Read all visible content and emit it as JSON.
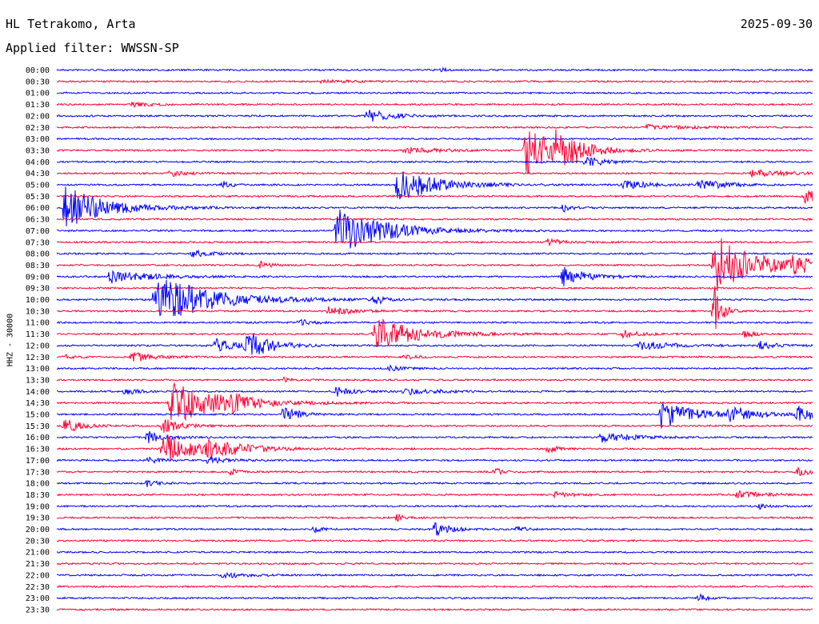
{
  "header": {
    "station": "HL Tetrakomo, Arta",
    "date": "2025-09-30",
    "filter": "Applied filter: WWSSN-SP"
  },
  "colors": {
    "trace_even": "#0000ff",
    "trace_odd": "#ff0033",
    "text": "#000000"
  },
  "chart_data": {
    "type": "line",
    "ylabel": "HHZ - 30000",
    "time_labels": [
      "00:00",
      "00:30",
      "01:00",
      "01:30",
      "02:00",
      "02:30",
      "03:00",
      "03:30",
      "04:00",
      "04:30",
      "05:00",
      "05:30",
      "06:00",
      "06:30",
      "07:00",
      "07:30",
      "08:00",
      "08:30",
      "09:00",
      "09:30",
      "10:00",
      "10:30",
      "11:00",
      "11:30",
      "12:00",
      "12:30",
      "13:00",
      "13:30",
      "14:00",
      "14:30",
      "15:00",
      "15:30",
      "16:00",
      "16:30",
      "17:00",
      "17:30",
      "18:00",
      "18:30",
      "19:00",
      "19:30",
      "20:00",
      "20:30",
      "21:00",
      "21:30",
      "22:00",
      "22:30",
      "23:00",
      "23:30"
    ],
    "x_minutes": [
      0,
      30
    ],
    "events": [
      {
        "row": 0,
        "t": 0.51,
        "a": 3,
        "d": 0.005
      },
      {
        "row": 1,
        "t": 0.35,
        "a": 2,
        "d": 0.03
      },
      {
        "row": 3,
        "t": 0.1,
        "a": 3,
        "d": 0.025
      },
      {
        "row": 4,
        "t": 0.41,
        "a": 9,
        "d": 0.03
      },
      {
        "row": 5,
        "t": 0.78,
        "a": 3,
        "d": 0.05
      },
      {
        "row": 7,
        "t": 0.46,
        "a": 4,
        "d": 0.04
      },
      {
        "row": 7,
        "t": 0.62,
        "a": 30,
        "d": 0.04
      },
      {
        "row": 7,
        "t": 0.66,
        "a": 18,
        "d": 0.03
      },
      {
        "row": 8,
        "t": 0.7,
        "a": 8,
        "d": 0.02
      },
      {
        "row": 9,
        "t": 0.15,
        "a": 4,
        "d": 0.02
      },
      {
        "row": 9,
        "t": 0.92,
        "a": 4,
        "d": 0.06
      },
      {
        "row": 10,
        "t": 0.45,
        "a": 22,
        "d": 0.05
      },
      {
        "row": 10,
        "t": 0.22,
        "a": 5,
        "d": 0.01
      },
      {
        "row": 10,
        "t": 0.75,
        "a": 6,
        "d": 0.03
      },
      {
        "row": 10,
        "t": 0.85,
        "a": 7,
        "d": 0.03
      },
      {
        "row": 11,
        "t": 0.99,
        "a": 10,
        "d": 0.02
      },
      {
        "row": 12,
        "t": 0.01,
        "a": 28,
        "d": 0.05
      },
      {
        "row": 12,
        "t": 0.67,
        "a": 6,
        "d": 0.01
      },
      {
        "row": 14,
        "t": 0.37,
        "a": 30,
        "d": 0.06
      },
      {
        "row": 15,
        "t": 0.65,
        "a": 4,
        "d": 0.02
      },
      {
        "row": 16,
        "t": 0.18,
        "a": 5,
        "d": 0.02
      },
      {
        "row": 17,
        "t": 0.27,
        "a": 5,
        "d": 0.01
      },
      {
        "row": 17,
        "t": 0.87,
        "a": 40,
        "d": 0.05
      },
      {
        "row": 17,
        "t": 0.97,
        "a": 8,
        "d": 0.04
      },
      {
        "row": 18,
        "t": 0.07,
        "a": 8,
        "d": 0.05
      },
      {
        "row": 18,
        "t": 0.67,
        "a": 12,
        "d": 0.03
      },
      {
        "row": 20,
        "t": 0.13,
        "a": 32,
        "d": 0.07
      },
      {
        "row": 20,
        "t": 0.42,
        "a": 8,
        "d": 0.01
      },
      {
        "row": 21,
        "t": 0.36,
        "a": 6,
        "d": 0.03
      },
      {
        "row": 21,
        "t": 0.87,
        "a": 35,
        "d": 0.01
      },
      {
        "row": 22,
        "t": 0.32,
        "a": 4,
        "d": 0.02
      },
      {
        "row": 23,
        "t": 0.42,
        "a": 22,
        "d": 0.05
      },
      {
        "row": 23,
        "t": 0.91,
        "a": 6,
        "d": 0.01
      },
      {
        "row": 23,
        "t": 0.75,
        "a": 5,
        "d": 0.02
      },
      {
        "row": 24,
        "t": 0.21,
        "a": 8,
        "d": 0.03
      },
      {
        "row": 24,
        "t": 0.25,
        "a": 18,
        "d": 0.03
      },
      {
        "row": 24,
        "t": 0.77,
        "a": 6,
        "d": 0.04
      },
      {
        "row": 24,
        "t": 0.93,
        "a": 5,
        "d": 0.02
      },
      {
        "row": 25,
        "t": 0.1,
        "a": 6,
        "d": 0.03
      },
      {
        "row": 25,
        "t": 0.46,
        "a": 4,
        "d": 0.01
      },
      {
        "row": 25,
        "t": 0.01,
        "a": 3,
        "d": 0.01
      },
      {
        "row": 26,
        "t": 0.44,
        "a": 3,
        "d": 0.02
      },
      {
        "row": 27,
        "t": 0.3,
        "a": 3,
        "d": 0.01
      },
      {
        "row": 28,
        "t": 0.09,
        "a": 4,
        "d": 0.02
      },
      {
        "row": 28,
        "t": 0.37,
        "a": 6,
        "d": 0.02
      },
      {
        "row": 28,
        "t": 0.46,
        "a": 4,
        "d": 0.04
      },
      {
        "row": 29,
        "t": 0.15,
        "a": 28,
        "d": 0.06
      },
      {
        "row": 29,
        "t": 0.23,
        "a": 8,
        "d": 0.02
      },
      {
        "row": 30,
        "t": 0.3,
        "a": 10,
        "d": 0.02
      },
      {
        "row": 30,
        "t": 0.8,
        "a": 18,
        "d": 0.04
      },
      {
        "row": 30,
        "t": 0.89,
        "a": 10,
        "d": 0.03
      },
      {
        "row": 30,
        "t": 0.98,
        "a": 10,
        "d": 0.03
      },
      {
        "row": 31,
        "t": 0.01,
        "a": 10,
        "d": 0.02
      },
      {
        "row": 31,
        "t": 0.14,
        "a": 10,
        "d": 0.02
      },
      {
        "row": 32,
        "t": 0.12,
        "a": 8,
        "d": 0.02
      },
      {
        "row": 32,
        "t": 0.72,
        "a": 6,
        "d": 0.04
      },
      {
        "row": 33,
        "t": 0.14,
        "a": 20,
        "d": 0.04
      },
      {
        "row": 33,
        "t": 0.2,
        "a": 10,
        "d": 0.05
      },
      {
        "row": 33,
        "t": 0.65,
        "a": 6,
        "d": 0.01
      },
      {
        "row": 34,
        "t": 0.12,
        "a": 4,
        "d": 0.02
      },
      {
        "row": 34,
        "t": 0.2,
        "a": 5,
        "d": 0.02
      },
      {
        "row": 35,
        "t": 0.23,
        "a": 4,
        "d": 0.01
      },
      {
        "row": 35,
        "t": 0.58,
        "a": 6,
        "d": 0.01
      },
      {
        "row": 35,
        "t": 0.98,
        "a": 5,
        "d": 0.02
      },
      {
        "row": 36,
        "t": 0.12,
        "a": 6,
        "d": 0.01
      },
      {
        "row": 37,
        "t": 0.66,
        "a": 4,
        "d": 0.02
      },
      {
        "row": 37,
        "t": 0.9,
        "a": 5,
        "d": 0.03
      },
      {
        "row": 38,
        "t": 0.93,
        "a": 3,
        "d": 0.01
      },
      {
        "row": 39,
        "t": 0.45,
        "a": 4,
        "d": 0.01
      },
      {
        "row": 40,
        "t": 0.34,
        "a": 4,
        "d": 0.01
      },
      {
        "row": 40,
        "t": 0.5,
        "a": 8,
        "d": 0.02
      },
      {
        "row": 40,
        "t": 0.61,
        "a": 4,
        "d": 0.01
      },
      {
        "row": 44,
        "t": 0.22,
        "a": 4,
        "d": 0.03
      },
      {
        "row": 46,
        "t": 0.85,
        "a": 5,
        "d": 0.01
      }
    ]
  }
}
